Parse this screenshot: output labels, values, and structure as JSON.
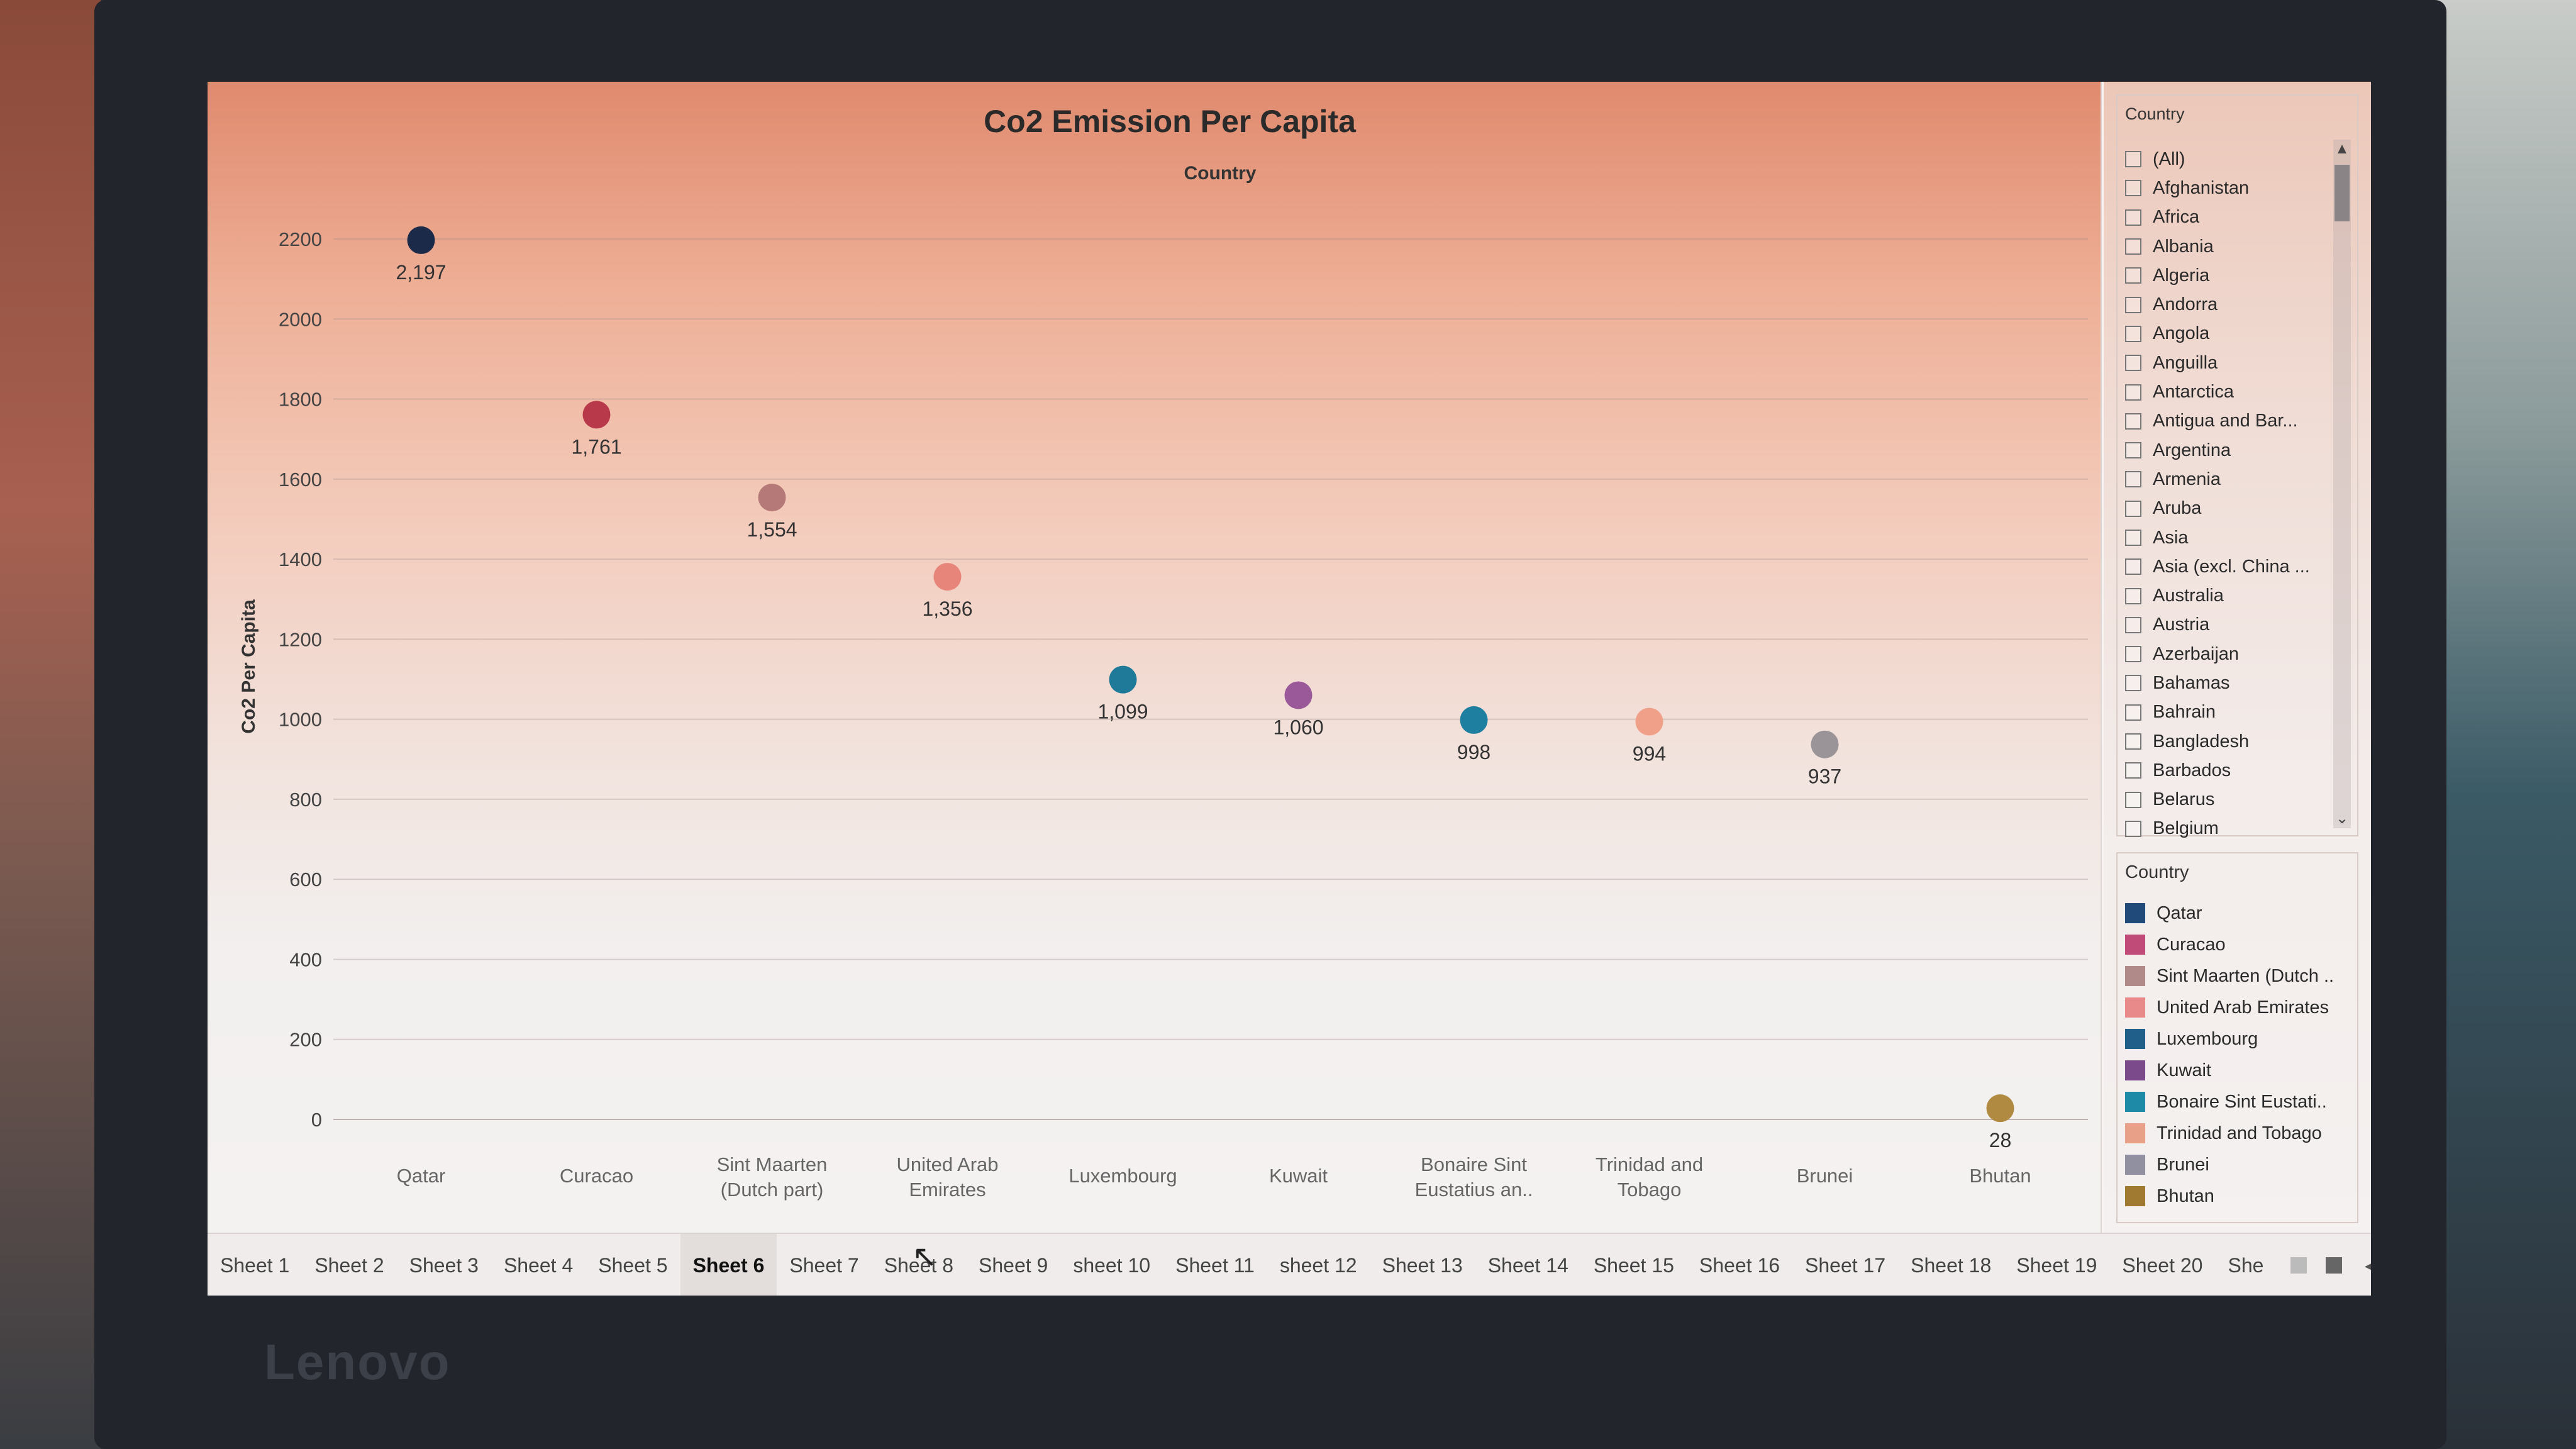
{
  "brand": "Lenovo",
  "chart_data": {
    "type": "scatter",
    "title": "Co2 Emission Per Capita",
    "subtitle": "Country",
    "ylabel": "Co2 Per Capita",
    "ylim": [
      0,
      2200
    ],
    "yticks": [
      0,
      200,
      400,
      600,
      800,
      1000,
      1200,
      1400,
      1600,
      1800,
      2000,
      2200
    ],
    "categories": [
      "Qatar",
      "Curacao",
      "Sint Maarten (Dutch part)",
      "United Arab Emirates",
      "Luxembourg",
      "Kuwait",
      "Bonaire Sint Eustatius an..",
      "Trinidad and Tobago",
      "Brunei",
      "Bhutan"
    ],
    "values": [
      2197,
      1761,
      1554,
      1356,
      1099,
      1060,
      998,
      994,
      937,
      28
    ],
    "labels": [
      "2,197",
      "1,761",
      "1,554",
      "1,356",
      "1,099",
      "1,060",
      "998",
      "994",
      "937",
      "28"
    ],
    "colors": [
      "#1c2a4a",
      "#b83a4a",
      "#b57a78",
      "#e8857a",
      "#1f7a9a",
      "#9a5a9a",
      "#1f7fa0",
      "#f0a088",
      "#9a9498",
      "#b08a40"
    ],
    "grid": true
  },
  "filter": {
    "title": "Country",
    "items": [
      "(All)",
      "Afghanistan",
      "Africa",
      "Albania",
      "Algeria",
      "Andorra",
      "Angola",
      "Anguilla",
      "Antarctica",
      "Antigua and Bar...",
      "Argentina",
      "Armenia",
      "Aruba",
      "Asia",
      "Asia (excl. China ...",
      "Australia",
      "Austria",
      "Azerbaijan",
      "Bahamas",
      "Bahrain",
      "Bangladesh",
      "Barbados",
      "Belarus",
      "Belgium"
    ],
    "scroll_up": "▲",
    "scroll_down": "⌄"
  },
  "legend": {
    "title": "Country",
    "items": [
      "Qatar",
      "Curacao",
      "Sint Maarten (Dutch ..",
      "United Arab Emirates",
      "Luxembourg",
      "Kuwait",
      "Bonaire Sint Eustati..",
      "Trinidad and Tobago",
      "Brunei",
      "Bhutan"
    ],
    "colors": [
      "#1f4a7a",
      "#c04a78",
      "#b08a88",
      "#e88a8a",
      "#1f5f8a",
      "#7a4a8a",
      "#1f8aa8",
      "#e8a088",
      "#9090a0",
      "#a07a30"
    ]
  },
  "tabs": [
    "Sheet 1",
    "Sheet 2",
    "Sheet 3",
    "Sheet 4",
    "Sheet 5",
    "Sheet 6",
    "Sheet 7",
    "Sheet 8",
    "Sheet 9",
    "sheet 10",
    "Sheet 11",
    "sheet 12",
    "Sheet 13",
    "Sheet 14",
    "Sheet 15",
    "Sheet 16",
    "Sheet 17",
    "Sheet 18",
    "Sheet 19",
    "Sheet 20",
    "She"
  ],
  "active_tab": "Sheet 6",
  "tab_controls": [
    "◂",
    "▸",
    "⛶",
    "▭"
  ]
}
